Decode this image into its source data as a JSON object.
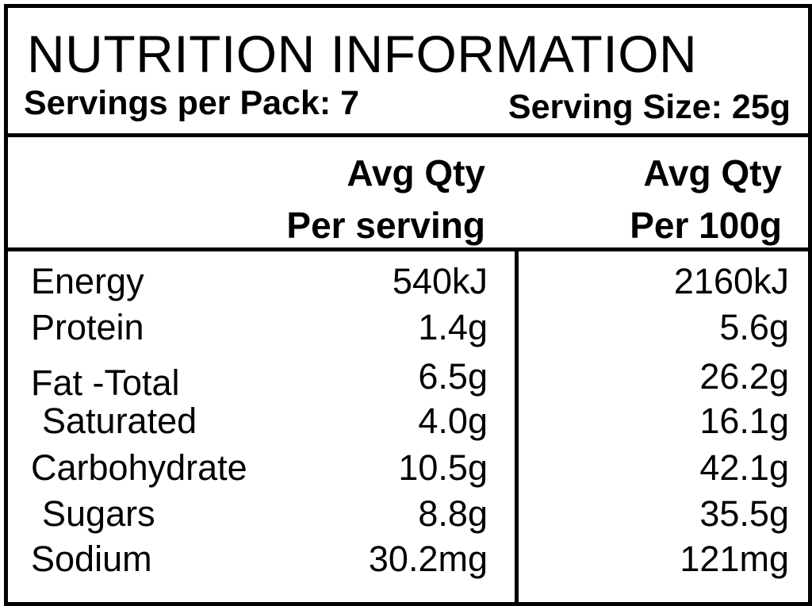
{
  "header": {
    "title": "NUTRITION INFORMATION",
    "servings_per_pack": "Servings per Pack: 7",
    "serving_size": "Serving Size: 25g"
  },
  "columns": {
    "per_serving_line1": "Avg Qty",
    "per_serving_line2": "Per serving",
    "per_100g_line1": "Avg Qty",
    "per_100g_line2": "Per 100g"
  },
  "rows": [
    {
      "name": "Energy",
      "per_serving": "540kJ",
      "per_100g": "2160kJ"
    },
    {
      "name": "Protein",
      "per_serving": "1.4g",
      "per_100g": "5.6g"
    },
    {
      "name": "Fat -Total",
      "per_serving": "6.5g",
      "per_100g": "26.2g"
    },
    {
      "name": "Saturated",
      "per_serving": "4.0g",
      "per_100g": "16.1g"
    },
    {
      "name": "Carbohydrate",
      "per_serving": "10.5g",
      "per_100g": "42.1g"
    },
    {
      "name": "Sugars",
      "per_serving": "8.8g",
      "per_100g": "35.5g"
    },
    {
      "name": "Sodium",
      "per_serving": "30.2mg",
      "per_100g": "121mg"
    }
  ]
}
